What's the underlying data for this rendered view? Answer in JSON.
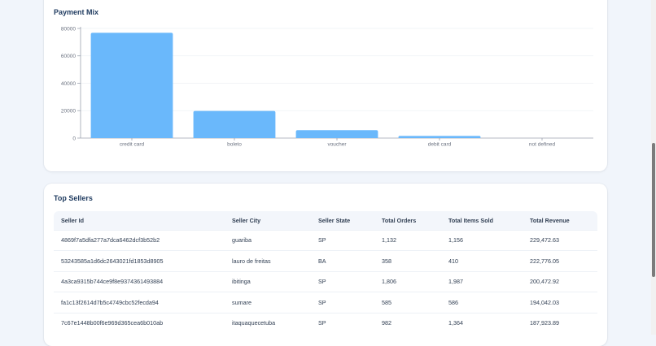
{
  "payment_mix": {
    "title": "Payment Mix"
  },
  "chart_data": {
    "type": "bar",
    "categories": [
      "credit card",
      "boleto",
      "voucher",
      "debit card",
      "not defined"
    ],
    "values": [
      76795,
      19784,
      5775,
      1529,
      3
    ],
    "ylim": [
      0,
      80000
    ],
    "yticks": [
      0,
      20000,
      40000,
      60000,
      80000
    ],
    "grid": true,
    "bar_color": "#6ab8fb"
  },
  "top_sellers": {
    "title": "Top Sellers",
    "columns": [
      "Seller Id",
      "Seller City",
      "Seller State",
      "Total Orders",
      "Total Items Sold",
      "Total Revenue"
    ],
    "rows": [
      [
        "4869f7a5dfa277a7dca6462dcf3b52b2",
        "guariba",
        "SP",
        "1,132",
        "1,156",
        "229,472.63"
      ],
      [
        "53243585a1d6dc2643021fd1853d8905",
        "lauro de freitas",
        "BA",
        "358",
        "410",
        "222,776.05"
      ],
      [
        "4a3ca9315b744ce9f8e9374361493884",
        "ibitinga",
        "SP",
        "1,806",
        "1,987",
        "200,472.92"
      ],
      [
        "fa1c13f2614d7b5c4749cbc52fecda94",
        "sumare",
        "SP",
        "585",
        "586",
        "194,042.03"
      ],
      [
        "7c67e1448b00f6e969d365cea6b010ab",
        "itaquaquecetuba",
        "SP",
        "982",
        "1,364",
        "187,923.89"
      ]
    ]
  }
}
